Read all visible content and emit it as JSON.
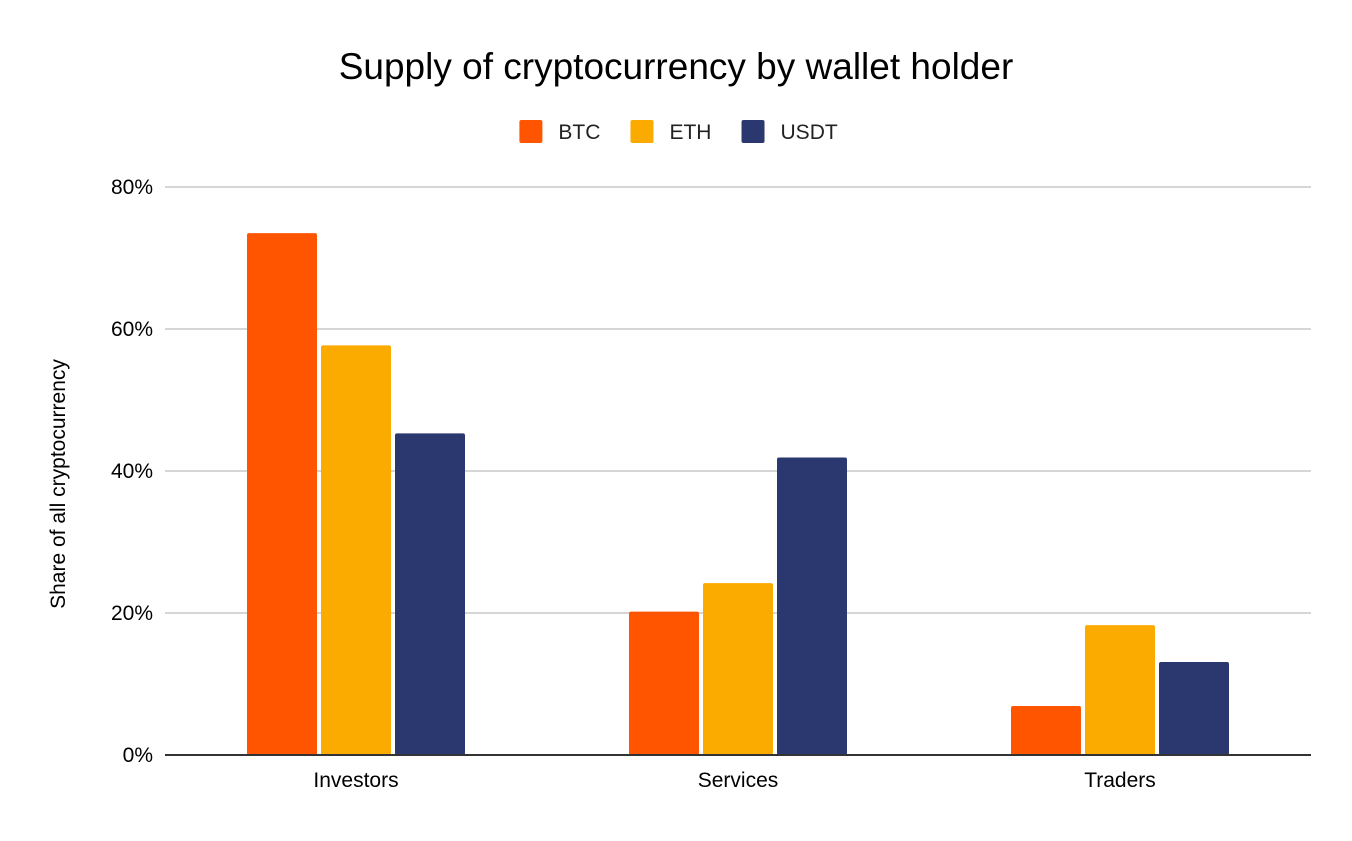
{
  "chart_data": {
    "type": "bar",
    "title": "Supply of cryptocurrency by wallet holder",
    "xlabel": "",
    "ylabel": "Share of all cryptocurrency",
    "categories": [
      "Investors",
      "Services",
      "Traders"
    ],
    "series": [
      {
        "name": "BTC",
        "color": "#ff5500",
        "values": [
          73.5,
          20.2,
          6.9
        ]
      },
      {
        "name": "ETH",
        "color": "#fbaa00",
        "values": [
          57.7,
          24.2,
          18.3
        ]
      },
      {
        "name": "USDT",
        "color": "#2b3870",
        "values": [
          45.3,
          41.9,
          13.1
        ]
      }
    ],
    "ylim": [
      0,
      80
    ],
    "yticks": [
      0,
      20,
      40,
      60,
      80
    ],
    "ytick_labels": [
      "0%",
      "20%",
      "40%",
      "60%",
      "80%"
    ],
    "grid": true,
    "legend_position": "top-center"
  }
}
